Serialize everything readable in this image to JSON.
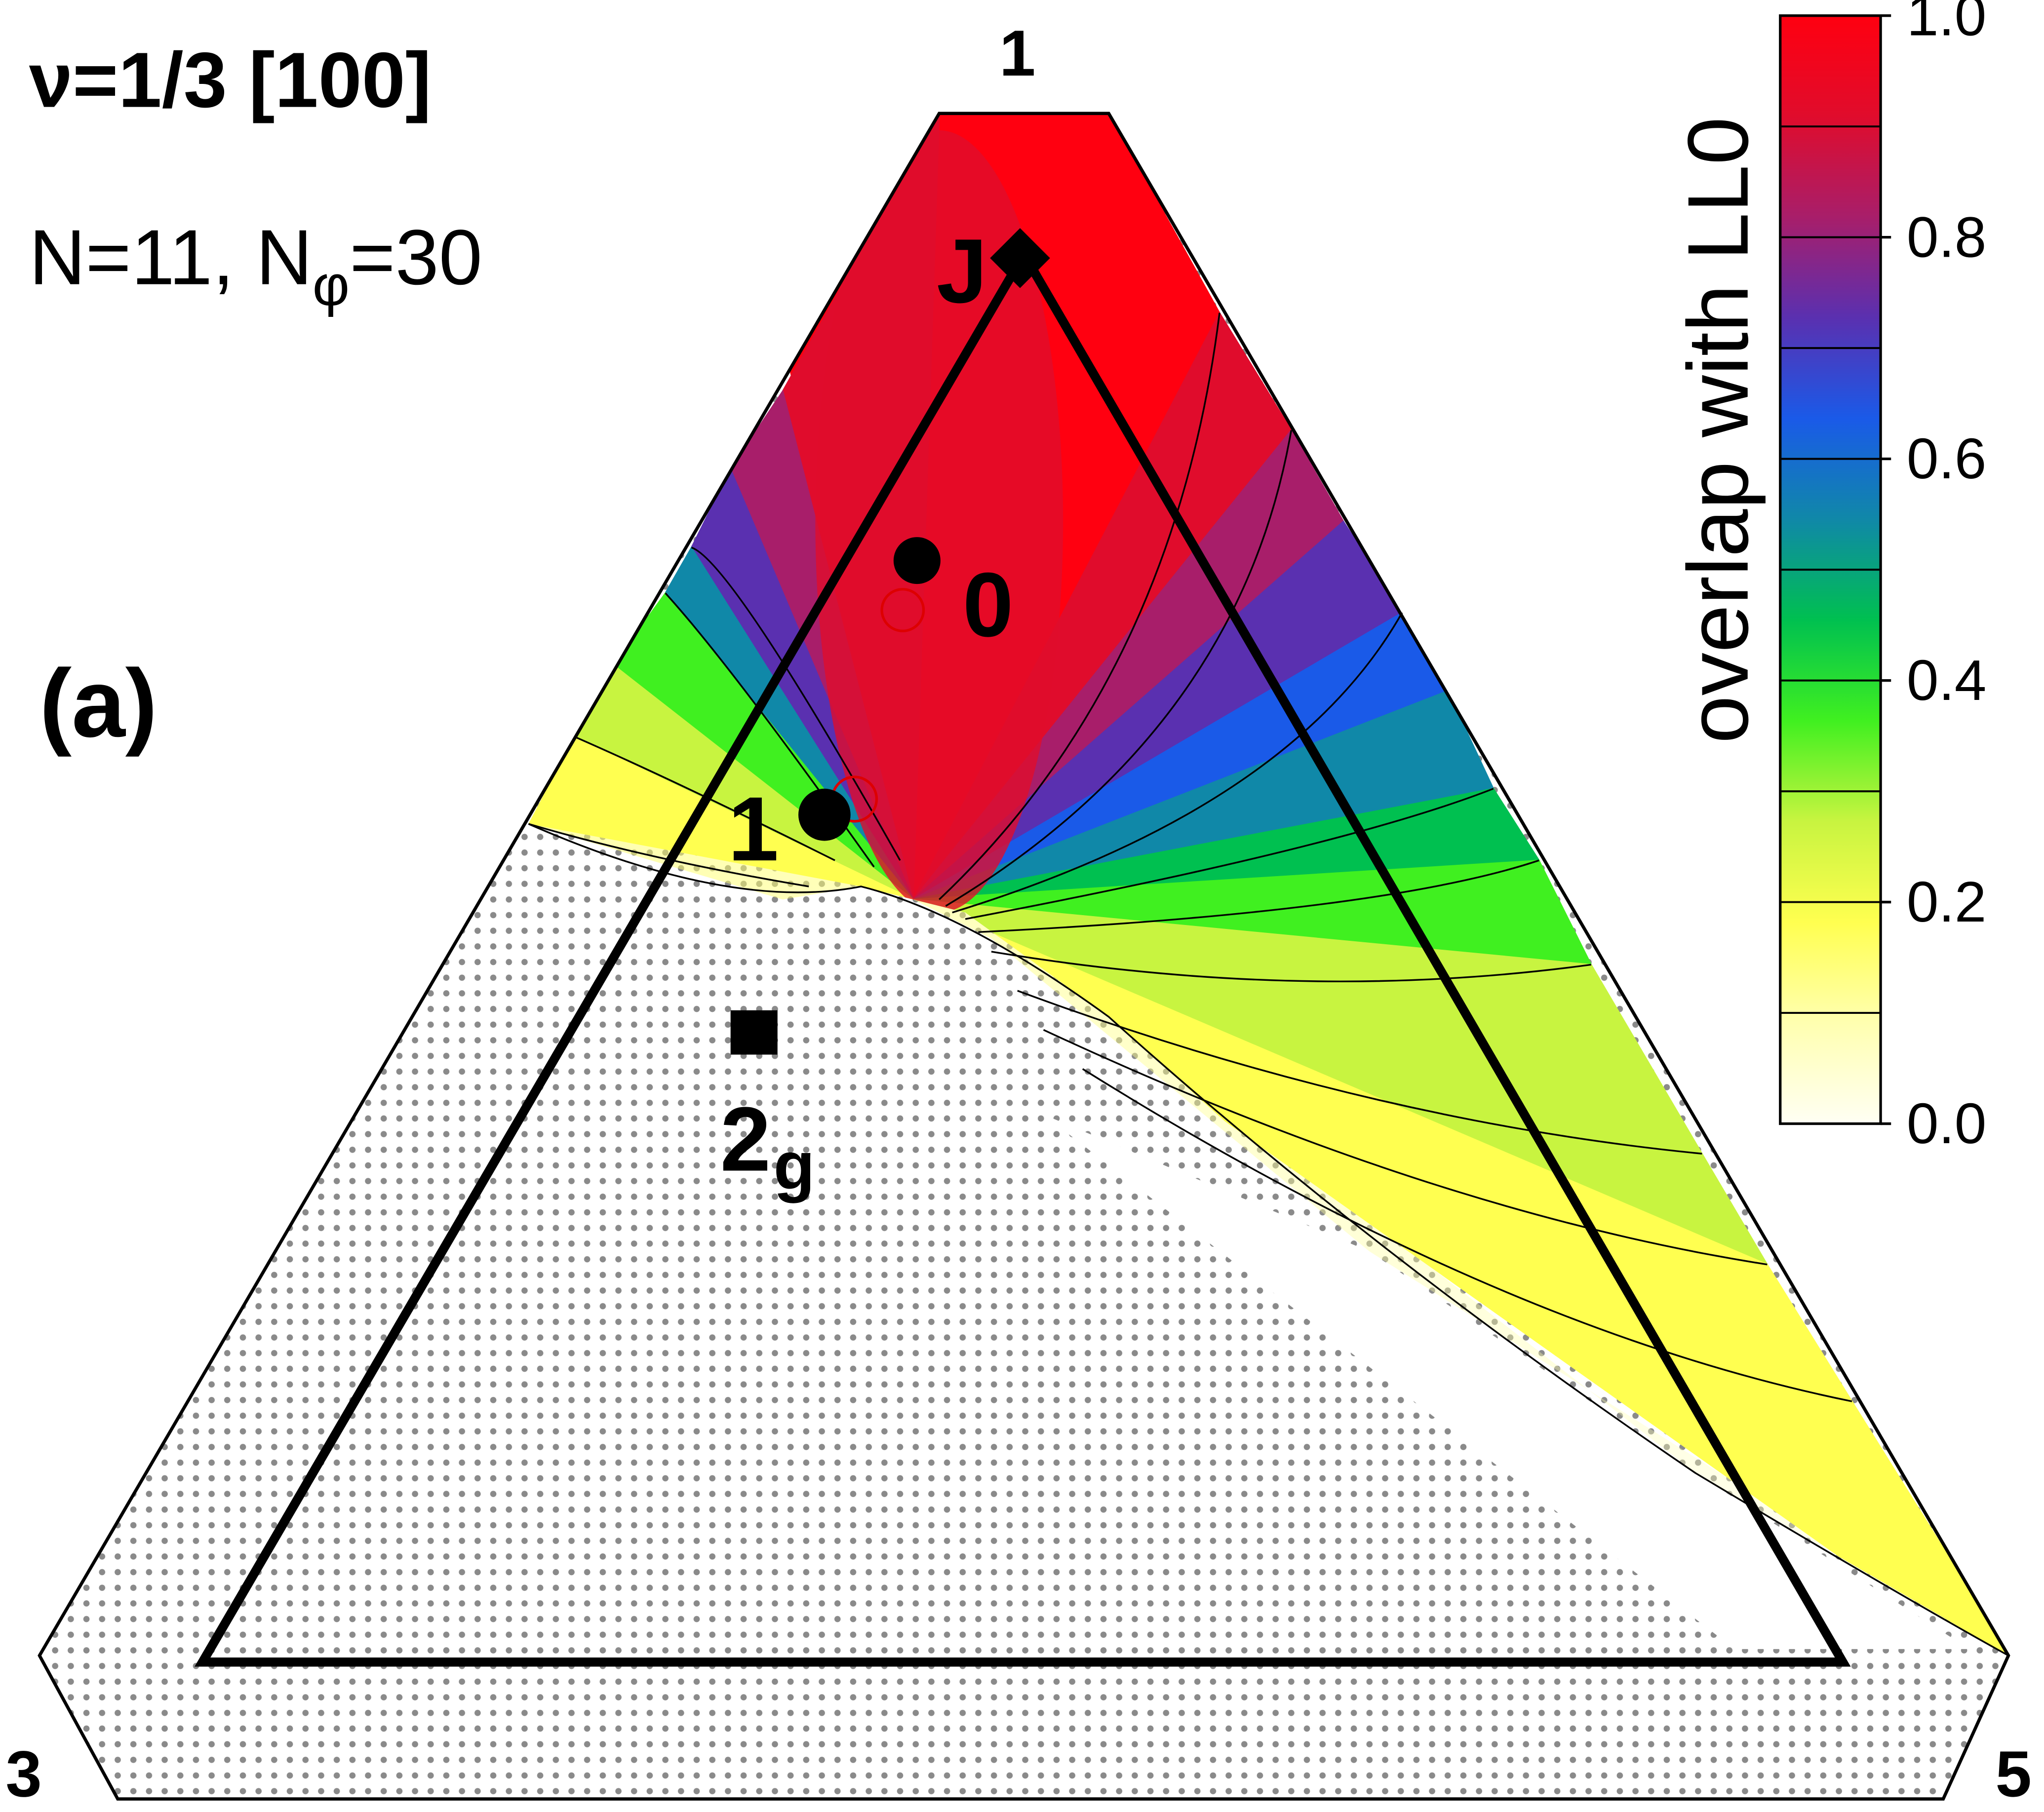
{
  "chart_data": {
    "type": "ternary",
    "title": "ν=1/3 [100]",
    "subtitle": [
      "N=11, N",
      "φ",
      "=30"
    ],
    "panel_label": "(a)",
    "corner_labels": {
      "top": "1",
      "left": "3",
      "right": "5"
    },
    "points": [
      {
        "label": "J",
        "marker": "diamond"
      },
      {
        "label": "0",
        "marker": "circle"
      },
      {
        "label": "1",
        "marker": "circle"
      },
      {
        "label": "2",
        "sub": "g",
        "marker": "square"
      }
    ],
    "colorbar": {
      "label": "overlap with LL0",
      "lim": [
        0,
        1
      ],
      "ticks": [
        {
          "value": 0,
          "label": "0.0"
        },
        {
          "value": 0.2,
          "label": "0.2"
        },
        {
          "value": 0.4,
          "label": "0.4"
        },
        {
          "value": 0.6,
          "label": "0.6"
        },
        {
          "value": 0.8,
          "label": "0.8"
        },
        {
          "value": 1,
          "label": "1.0"
        }
      ],
      "levels": [
        0.1,
        0.2,
        0.3,
        0.4,
        0.5,
        0.6,
        0.7,
        0.8,
        0.9
      ],
      "colors": [
        "#fffff4",
        "#ffffb0",
        "#ffff50",
        "#c8f440",
        "#40f020",
        "#00c050",
        "#1088a8",
        "#1a5ae8",
        "#5a30b0",
        "#a81e6a",
        "#e00c2c",
        "#ff0010"
      ]
    }
  }
}
